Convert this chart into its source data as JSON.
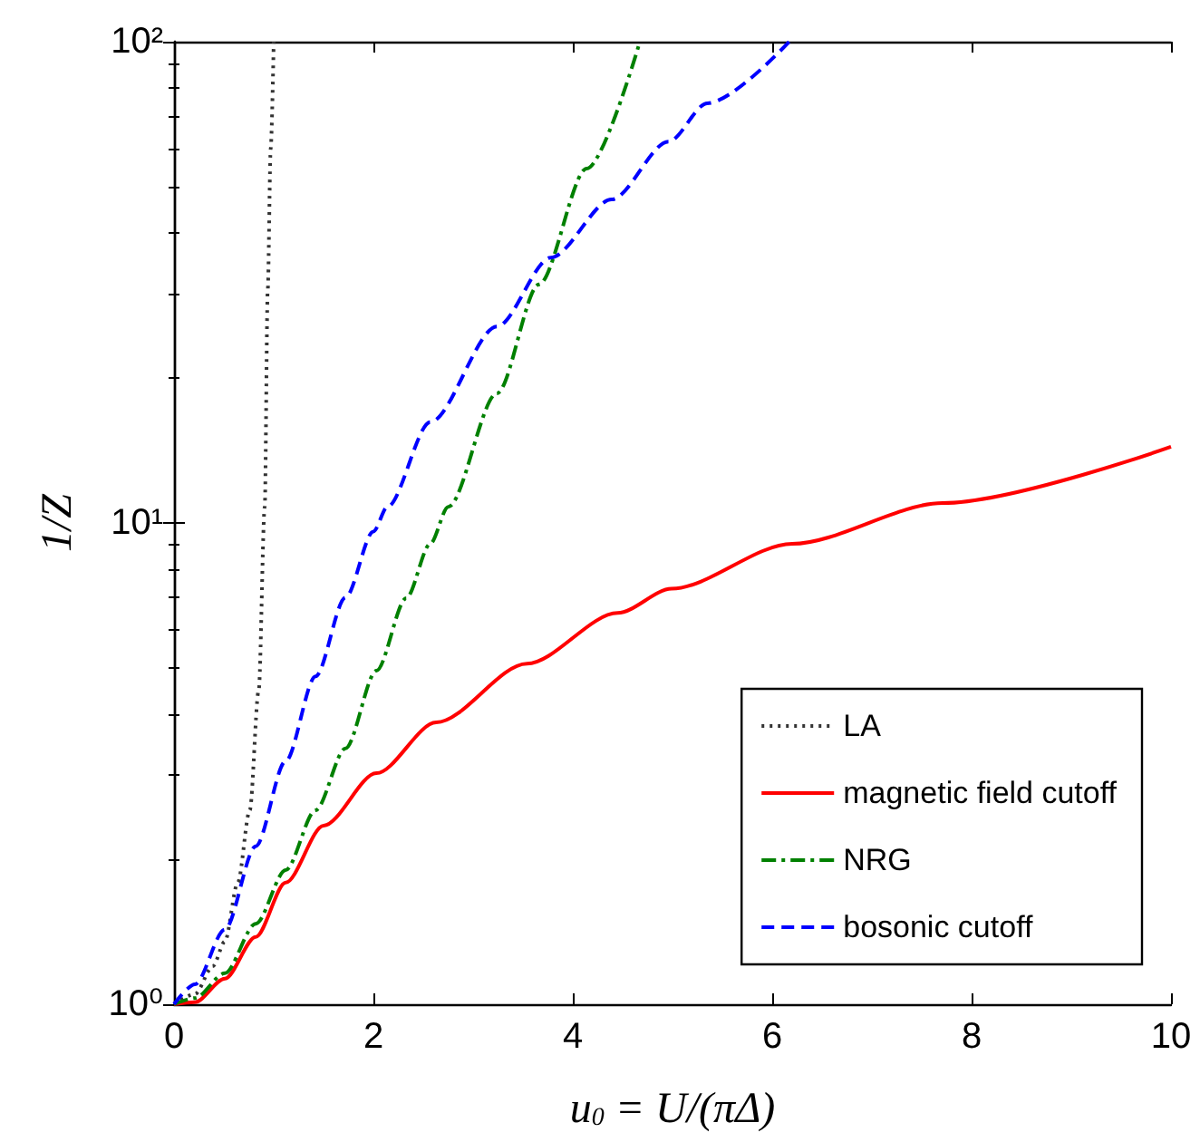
{
  "chart_data": {
    "type": "line",
    "xlabel": "u$_{0}$ = U/(πΔ)",
    "ylabel": "1/Z",
    "log": "y",
    "grid": false,
    "legend": "bottom right",
    "marker": "none",
    "xlim": [
      0,
      10
    ],
    "xticks": [
      0,
      2,
      4,
      6,
      8,
      10
    ],
    "ylim": [
      1,
      100
    ],
    "yticks": [
      {
        "value": 1,
        "label": "10⁰"
      },
      {
        "value": 10,
        "label": "10¹"
      },
      {
        "value": 100,
        "label": "10²"
      }
    ],
    "series": [
      {
        "name": "LA",
        "color": "#333333",
        "line_style": "dotted",
        "x": [
          0,
          0.21,
          0.39,
          0.51,
          0.64,
          0.76,
          0.85,
          0.91,
          0.94,
          0.97,
          1.0
        ],
        "values": [
          1,
          1.05,
          1.2,
          1.35,
          1.79,
          2.53,
          4.5,
          10.8,
          30.5,
          60,
          100
        ]
      },
      {
        "name": "magnetic field cutoff",
        "color": "#ff0000",
        "line_style": "solid",
        "x": [
          0,
          0.21,
          0.51,
          0.82,
          1.12,
          1.5,
          2.03,
          2.63,
          3.54,
          4.45,
          4.99,
          6.2,
          7.71,
          10
        ],
        "values": [
          1,
          1.01,
          1.13,
          1.38,
          1.79,
          2.35,
          3.02,
          3.85,
          5.1,
          6.5,
          7.3,
          9.05,
          11.0,
          14.4
        ]
      },
      {
        "name": "NRG",
        "color": "#008000",
        "line_style": "dashdot",
        "x": [
          0,
          0.21,
          0.51,
          0.82,
          1.12,
          1.42,
          1.72,
          2.03,
          2.33,
          2.57,
          2.75,
          3.24,
          3.66,
          4.14,
          4.66
        ],
        "values": [
          1,
          1.03,
          1.16,
          1.47,
          1.9,
          2.53,
          3.4,
          4.93,
          6.98,
          9.05,
          10.8,
          18.6,
          31.3,
          54.5,
          98
        ]
      },
      {
        "name": "bosonic cutoff",
        "color": "#0000ff",
        "line_style": "dashed",
        "x": [
          0,
          0.21,
          0.51,
          0.82,
          1.12,
          1.42,
          1.72,
          2.0,
          2.14,
          2.57,
          3.24,
          3.78,
          4.39,
          4.96,
          5.35,
          6.17
        ],
        "values": [
          1,
          1.1,
          1.43,
          2.13,
          3.2,
          4.8,
          7.0,
          9.6,
          10.8,
          16.2,
          25.6,
          35.6,
          47,
          62,
          74.5,
          100
        ]
      }
    ]
  }
}
